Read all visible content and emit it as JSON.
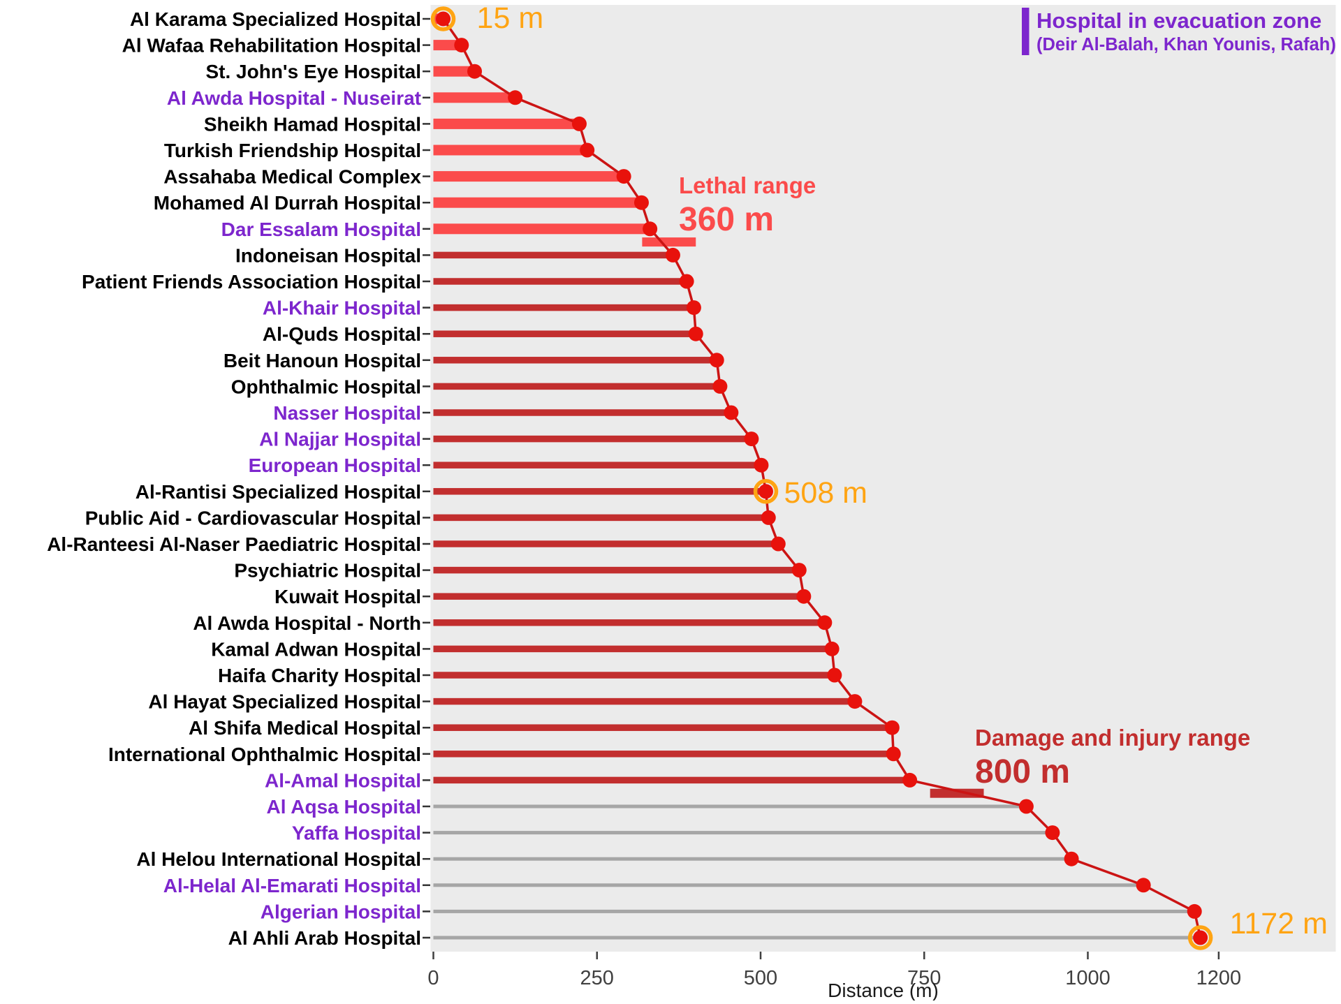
{
  "colors": {
    "page_bg": "#FFFFFF",
    "panel_bg": "#EBEBEB",
    "bright_red": "#FB4B4B",
    "dark_red": "#C22E2E",
    "gray_bar": "#A6A6A6",
    "point_red": "#E8120C",
    "line_red": "#CB1414",
    "orange": "#FFA413",
    "purple": "#7D26CD",
    "axis_text": "#404040",
    "label_black": "#000000"
  },
  "legend": {
    "title": "Hospital in evacuation zone",
    "subtitle": "(Deir Al-Balah, Khan Younis, Rafah)"
  },
  "chart_data": {
    "type": "lollipop",
    "title": "",
    "xlabel": "Distance (m)",
    "ylabel": "",
    "x_ticks": [
      0,
      250,
      500,
      750,
      1000,
      1200
    ],
    "xlim": [
      0,
      1380
    ],
    "grid": false,
    "legend_position": "top-right",
    "thresholds": [
      {
        "name": "lethal",
        "label": "Lethal range",
        "value": 360,
        "value_label": "360 m"
      },
      {
        "name": "damage",
        "label": "Damage and injury range",
        "value": 800,
        "value_label": "800 m"
      }
    ],
    "callouts": [
      {
        "hospital": "Al Karama Specialized Hospital",
        "label": "15 m"
      },
      {
        "hospital": "Al-Rantisi Specialized Hospital",
        "label": "508 m"
      },
      {
        "hospital": "Al Ahli Arab Hospital",
        "label": "1172 m"
      }
    ],
    "hospitals": [
      {
        "name": "Al Karama Specialized Hospital",
        "distance_m": 15,
        "evacuation_zone": false
      },
      {
        "name": "Al Wafaa Rehabilitation Hospital",
        "distance_m": 43,
        "evacuation_zone": false
      },
      {
        "name": "St. John's Eye Hospital",
        "distance_m": 63,
        "evacuation_zone": false
      },
      {
        "name": "Al Awda Hospital - Nuseirat",
        "distance_m": 125,
        "evacuation_zone": true
      },
      {
        "name": "Sheikh Hamad Hospital",
        "distance_m": 223,
        "evacuation_zone": false
      },
      {
        "name": "Turkish Friendship Hospital",
        "distance_m": 235,
        "evacuation_zone": false
      },
      {
        "name": "Assahaba Medical Complex",
        "distance_m": 291,
        "evacuation_zone": false
      },
      {
        "name": "Mohamed Al Durrah Hospital",
        "distance_m": 318,
        "evacuation_zone": false
      },
      {
        "name": "Dar Essalam Hospital",
        "distance_m": 331,
        "evacuation_zone": true
      },
      {
        "name": "Indoneisan Hospital",
        "distance_m": 366,
        "evacuation_zone": false
      },
      {
        "name": "Patient Friends Association Hospital",
        "distance_m": 387,
        "evacuation_zone": false
      },
      {
        "name": "Al-Khair Hospital",
        "distance_m": 398,
        "evacuation_zone": true
      },
      {
        "name": "Al-Quds Hospital",
        "distance_m": 401,
        "evacuation_zone": false
      },
      {
        "name": "Beit Hanoun Hospital",
        "distance_m": 433,
        "evacuation_zone": false
      },
      {
        "name": "Ophthalmic Hospital",
        "distance_m": 438,
        "evacuation_zone": false
      },
      {
        "name": "Nasser Hospital",
        "distance_m": 455,
        "evacuation_zone": true
      },
      {
        "name": "Al Najjar Hospital",
        "distance_m": 486,
        "evacuation_zone": true
      },
      {
        "name": "European Hospital",
        "distance_m": 501,
        "evacuation_zone": true
      },
      {
        "name": "Al-Rantisi Specialized Hospital",
        "distance_m": 508,
        "evacuation_zone": false
      },
      {
        "name": "Public Aid - Cardiovascular Hospital",
        "distance_m": 512,
        "evacuation_zone": false
      },
      {
        "name": "Al-Ranteesi Al-Naser Paediatric Hospital",
        "distance_m": 527,
        "evacuation_zone": false
      },
      {
        "name": "Psychiatric Hospital",
        "distance_m": 559,
        "evacuation_zone": false
      },
      {
        "name": "Kuwait Hospital",
        "distance_m": 566,
        "evacuation_zone": false
      },
      {
        "name": "Al Awda Hospital - North",
        "distance_m": 598,
        "evacuation_zone": false
      },
      {
        "name": "Kamal Adwan Hospital",
        "distance_m": 609,
        "evacuation_zone": false
      },
      {
        "name": "Haifa Charity Hospital",
        "distance_m": 613,
        "evacuation_zone": false
      },
      {
        "name": "Al Hayat Specialized Hospital",
        "distance_m": 644,
        "evacuation_zone": false
      },
      {
        "name": "Al Shifa Medical Hospital",
        "distance_m": 701,
        "evacuation_zone": false
      },
      {
        "name": "International Ophthalmic Hospital",
        "distance_m": 703,
        "evacuation_zone": false
      },
      {
        "name": "Al-Amal Hospital",
        "distance_m": 728,
        "evacuation_zone": true
      },
      {
        "name": "Al Aqsa Hospital",
        "distance_m": 906,
        "evacuation_zone": true
      },
      {
        "name": "Yaffa Hospital",
        "distance_m": 946,
        "evacuation_zone": true
      },
      {
        "name": "Al Helou International Hospital",
        "distance_m": 975,
        "evacuation_zone": false
      },
      {
        "name": "Al-Helal Al-Emarati Hospital",
        "distance_m": 1085,
        "evacuation_zone": true
      },
      {
        "name": "Algerian Hospital",
        "distance_m": 1163,
        "evacuation_zone": true
      },
      {
        "name": "Al Ahli Arab Hospital",
        "distance_m": 1172,
        "evacuation_zone": false
      }
    ]
  }
}
